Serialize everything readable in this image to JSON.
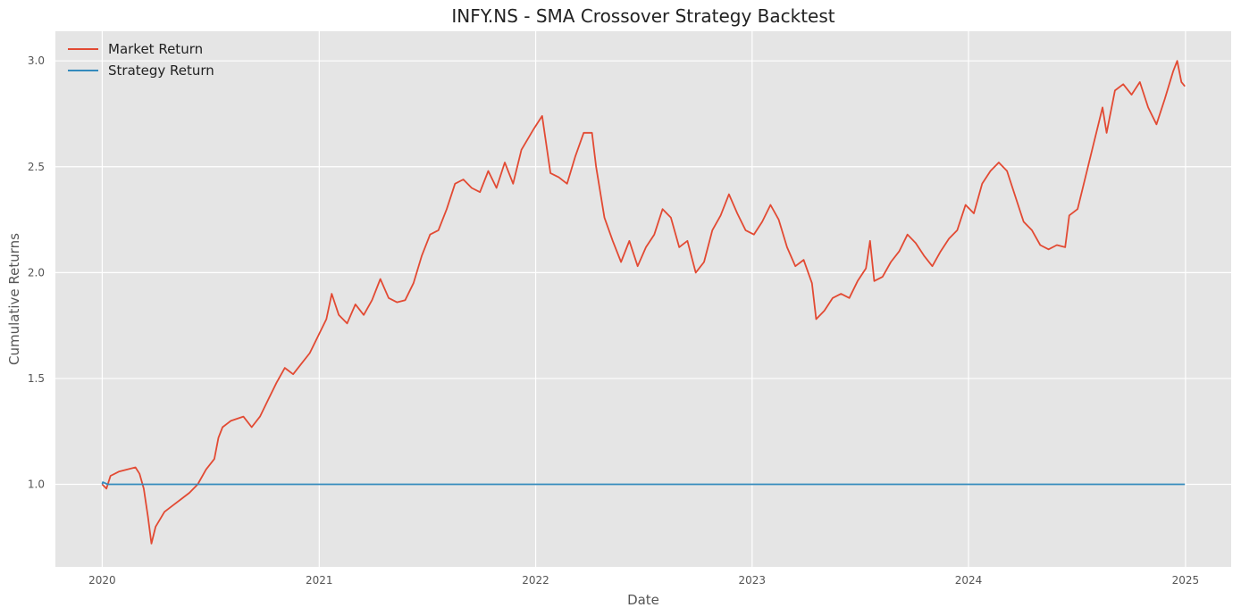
{
  "chart_data": {
    "type": "line",
    "title": "INFY.NS - SMA Crossover Strategy Backtest",
    "xlabel": "Date",
    "ylabel": "Cumulative Returns",
    "x_axis_type": "date",
    "xlim": [
      "2019-10-14",
      "2025-03-19"
    ],
    "ylim": [
      0.61,
      3.14
    ],
    "x_ticks": [
      "2020",
      "2021",
      "2022",
      "2023",
      "2024",
      "2025"
    ],
    "y_ticks": [
      "1.0",
      "1.5",
      "2.0",
      "2.5",
      "3.0"
    ],
    "grid": true,
    "legend_position": "top-left",
    "series": [
      {
        "name": "Market Return",
        "color": "#E24A33",
        "points": [
          [
            "2020-01-01",
            1.0
          ],
          [
            "2020-01-08",
            0.98
          ],
          [
            "2020-01-15",
            1.04
          ],
          [
            "2020-01-29",
            1.06
          ],
          [
            "2020-02-12",
            1.07
          ],
          [
            "2020-02-26",
            1.08
          ],
          [
            "2020-03-04",
            1.05
          ],
          [
            "2020-03-11",
            0.98
          ],
          [
            "2020-03-18",
            0.85
          ],
          [
            "2020-03-24",
            0.72
          ],
          [
            "2020-03-31",
            0.8
          ],
          [
            "2020-04-15",
            0.87
          ],
          [
            "2020-04-29",
            0.9
          ],
          [
            "2020-05-13",
            0.93
          ],
          [
            "2020-05-27",
            0.96
          ],
          [
            "2020-06-10",
            1.0
          ],
          [
            "2020-06-24",
            1.07
          ],
          [
            "2020-07-08",
            1.12
          ],
          [
            "2020-07-15",
            1.22
          ],
          [
            "2020-07-22",
            1.27
          ],
          [
            "2020-08-05",
            1.3
          ],
          [
            "2020-08-26",
            1.32
          ],
          [
            "2020-09-09",
            1.27
          ],
          [
            "2020-09-23",
            1.32
          ],
          [
            "2020-10-07",
            1.4
          ],
          [
            "2020-10-21",
            1.48
          ],
          [
            "2020-11-04",
            1.55
          ],
          [
            "2020-11-18",
            1.52
          ],
          [
            "2020-12-02",
            1.57
          ],
          [
            "2020-12-16",
            1.62
          ],
          [
            "2020-12-30",
            1.7
          ],
          [
            "2021-01-13",
            1.78
          ],
          [
            "2021-01-22",
            1.9
          ],
          [
            "2021-02-03",
            1.8
          ],
          [
            "2021-02-17",
            1.76
          ],
          [
            "2021-03-03",
            1.85
          ],
          [
            "2021-03-17",
            1.8
          ],
          [
            "2021-03-31",
            1.87
          ],
          [
            "2021-04-14",
            1.97
          ],
          [
            "2021-04-28",
            1.88
          ],
          [
            "2021-05-12",
            1.86
          ],
          [
            "2021-05-26",
            1.87
          ],
          [
            "2021-06-09",
            1.95
          ],
          [
            "2021-06-23",
            2.08
          ],
          [
            "2021-07-07",
            2.18
          ],
          [
            "2021-07-21",
            2.2
          ],
          [
            "2021-08-04",
            2.3
          ],
          [
            "2021-08-18",
            2.42
          ],
          [
            "2021-09-01",
            2.44
          ],
          [
            "2021-09-15",
            2.4
          ],
          [
            "2021-09-29",
            2.38
          ],
          [
            "2021-10-13",
            2.48
          ],
          [
            "2021-10-27",
            2.4
          ],
          [
            "2021-11-10",
            2.52
          ],
          [
            "2021-11-24",
            2.42
          ],
          [
            "2021-12-08",
            2.58
          ],
          [
            "2021-12-29",
            2.68
          ],
          [
            "2022-01-12",
            2.74
          ],
          [
            "2022-01-26",
            2.47
          ],
          [
            "2022-02-09",
            2.45
          ],
          [
            "2022-02-23",
            2.42
          ],
          [
            "2022-03-09",
            2.55
          ],
          [
            "2022-03-23",
            2.66
          ],
          [
            "2022-04-06",
            2.66
          ],
          [
            "2022-04-13",
            2.5
          ],
          [
            "2022-04-27",
            2.26
          ],
          [
            "2022-05-11",
            2.15
          ],
          [
            "2022-05-25",
            2.05
          ],
          [
            "2022-06-08",
            2.15
          ],
          [
            "2022-06-22",
            2.03
          ],
          [
            "2022-07-06",
            2.12
          ],
          [
            "2022-07-20",
            2.18
          ],
          [
            "2022-08-03",
            2.3
          ],
          [
            "2022-08-17",
            2.26
          ],
          [
            "2022-08-31",
            2.12
          ],
          [
            "2022-09-14",
            2.15
          ],
          [
            "2022-09-28",
            2.0
          ],
          [
            "2022-10-12",
            2.05
          ],
          [
            "2022-10-26",
            2.2
          ],
          [
            "2022-11-09",
            2.27
          ],
          [
            "2022-11-23",
            2.37
          ],
          [
            "2022-12-07",
            2.28
          ],
          [
            "2022-12-21",
            2.2
          ],
          [
            "2023-01-04",
            2.18
          ],
          [
            "2023-01-18",
            2.24
          ],
          [
            "2023-02-01",
            2.32
          ],
          [
            "2023-02-15",
            2.25
          ],
          [
            "2023-03-01",
            2.12
          ],
          [
            "2023-03-15",
            2.03
          ],
          [
            "2023-03-29",
            2.06
          ],
          [
            "2023-04-12",
            1.95
          ],
          [
            "2023-04-19",
            1.78
          ],
          [
            "2023-05-03",
            1.82
          ],
          [
            "2023-05-17",
            1.88
          ],
          [
            "2023-05-31",
            1.9
          ],
          [
            "2023-06-14",
            1.88
          ],
          [
            "2023-06-28",
            1.96
          ],
          [
            "2023-07-12",
            2.02
          ],
          [
            "2023-07-19",
            2.15
          ],
          [
            "2023-07-26",
            1.96
          ],
          [
            "2023-08-09",
            1.98
          ],
          [
            "2023-08-23",
            2.05
          ],
          [
            "2023-09-06",
            2.1
          ],
          [
            "2023-09-20",
            2.18
          ],
          [
            "2023-10-04",
            2.14
          ],
          [
            "2023-10-18",
            2.08
          ],
          [
            "2023-11-01",
            2.03
          ],
          [
            "2023-11-15",
            2.1
          ],
          [
            "2023-11-29",
            2.16
          ],
          [
            "2023-12-13",
            2.2
          ],
          [
            "2023-12-27",
            2.32
          ],
          [
            "2024-01-10",
            2.28
          ],
          [
            "2024-01-24",
            2.42
          ],
          [
            "2024-02-07",
            2.48
          ],
          [
            "2024-02-21",
            2.52
          ],
          [
            "2024-03-06",
            2.48
          ],
          [
            "2024-03-20",
            2.36
          ],
          [
            "2024-04-03",
            2.24
          ],
          [
            "2024-04-17",
            2.2
          ],
          [
            "2024-05-01",
            2.13
          ],
          [
            "2024-05-15",
            2.11
          ],
          [
            "2024-05-29",
            2.13
          ],
          [
            "2024-06-12",
            2.12
          ],
          [
            "2024-06-19",
            2.27
          ],
          [
            "2024-07-03",
            2.3
          ],
          [
            "2024-07-17",
            2.46
          ],
          [
            "2024-07-31",
            2.62
          ],
          [
            "2024-08-14",
            2.78
          ],
          [
            "2024-08-21",
            2.66
          ],
          [
            "2024-09-04",
            2.86
          ],
          [
            "2024-09-18",
            2.89
          ],
          [
            "2024-10-02",
            2.84
          ],
          [
            "2024-10-16",
            2.9
          ],
          [
            "2024-10-30",
            2.78
          ],
          [
            "2024-11-13",
            2.7
          ],
          [
            "2024-11-27",
            2.82
          ],
          [
            "2024-12-11",
            2.95
          ],
          [
            "2024-12-18",
            3.0
          ],
          [
            "2024-12-25",
            2.9
          ],
          [
            "2024-12-31",
            2.88
          ]
        ]
      },
      {
        "name": "Strategy Return",
        "color": "#348ABD",
        "points": [
          [
            "2020-01-01",
            1.0
          ],
          [
            "2020-01-02",
            1.01
          ],
          [
            "2020-01-10",
            1.0
          ],
          [
            "2024-12-31",
            1.0
          ]
        ]
      }
    ]
  }
}
